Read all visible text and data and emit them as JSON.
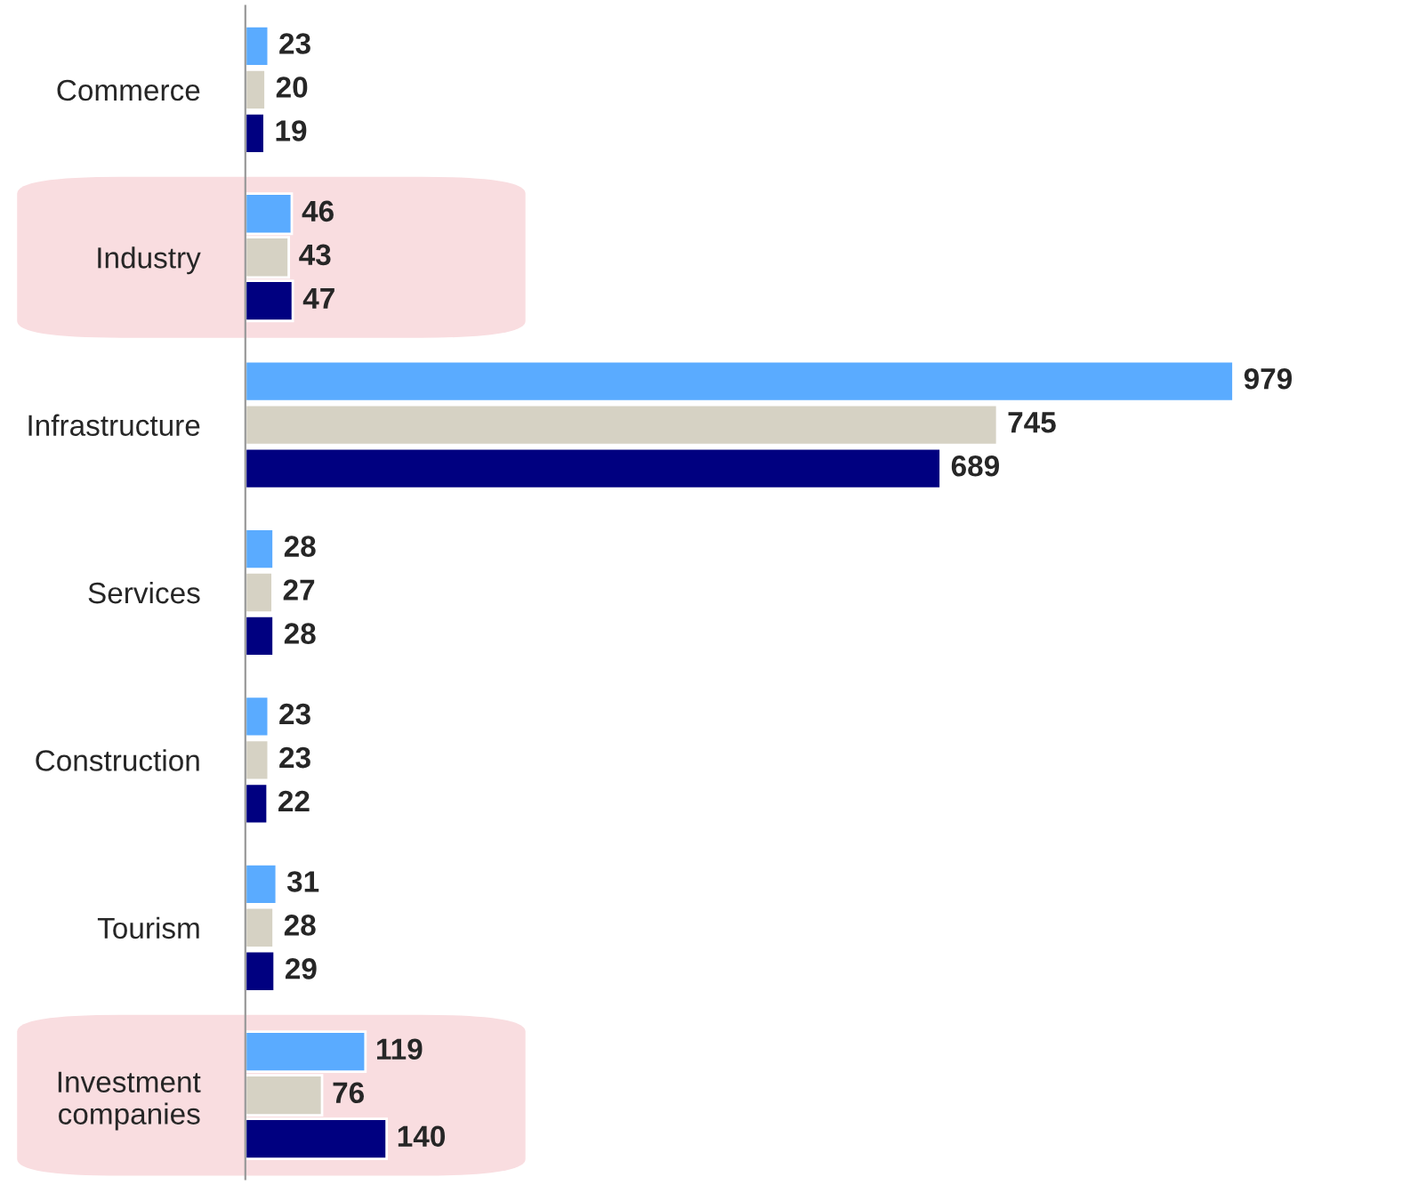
{
  "chart_data": {
    "type": "bar",
    "orientation": "horizontal",
    "categories": [
      "Commerce",
      "Industry",
      "Infrastructure",
      "Services",
      "Construction",
      "Tourism",
      "Investment companies"
    ],
    "series": [
      {
        "color": "#5aabff",
        "values": [
          23,
          46,
          979,
          28,
          23,
          31,
          119
        ]
      },
      {
        "color": "#d6d2c4",
        "values": [
          20,
          43,
          745,
          27,
          23,
          28,
          76
        ]
      },
      {
        "color": "#000080",
        "values": [
          19,
          47,
          689,
          28,
          22,
          29,
          140
        ]
      }
    ],
    "data_labels": true,
    "tick_labels": "y",
    "grid": false,
    "legend": false,
    "bands": [
      {
        "axis": "y",
        "from": "Industry",
        "to": "Industry",
        "color": "#f9dde0"
      },
      {
        "axis": "y",
        "from": "Investment companies",
        "to": "Investment companies",
        "color": "#f9dde0"
      }
    ]
  }
}
